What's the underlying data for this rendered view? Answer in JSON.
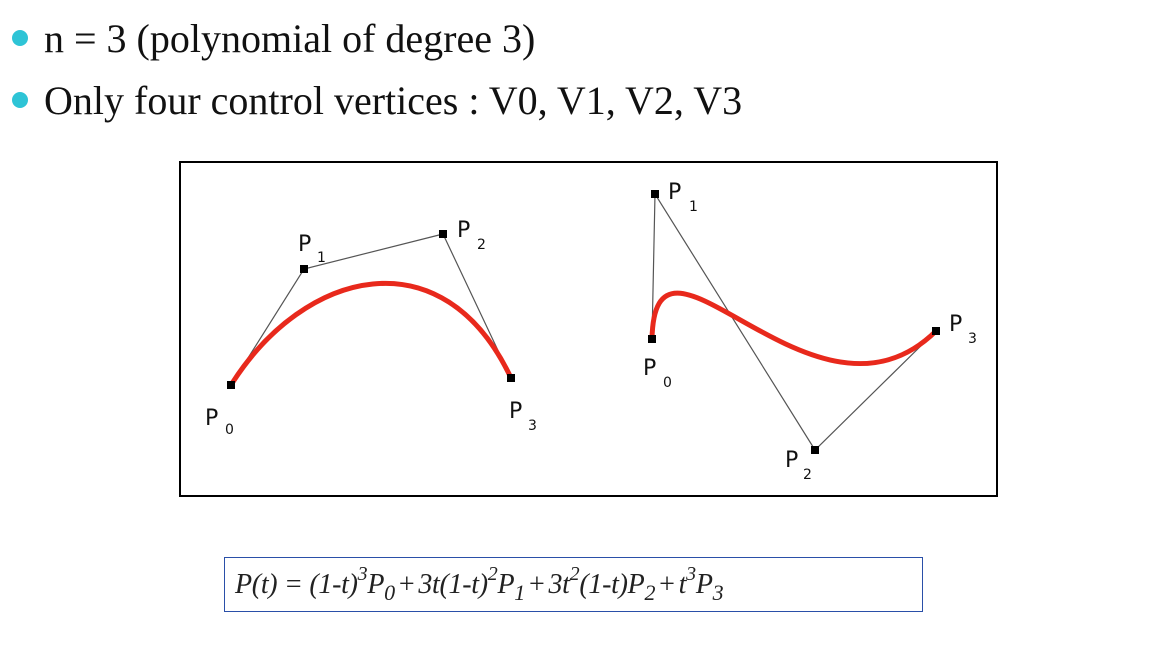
{
  "colors": {
    "bullet": "#2ec4d6",
    "curve": "#e8291c",
    "polygon": "#555555",
    "formula_border": "#2a4fa8"
  },
  "bullets": [
    {
      "text": "n = 3 (polynomial of degree 3)"
    },
    {
      "text": "Only four control vertices : V0, V1, V2, V3"
    }
  ],
  "figure": {
    "left_curve": {
      "labels": [
        {
          "main": "P",
          "sub": "0"
        },
        {
          "main": "P",
          "sub": "1"
        },
        {
          "main": "P",
          "sub": "2"
        },
        {
          "main": "P",
          "sub": "3"
        }
      ]
    },
    "right_curve": {
      "labels": [
        {
          "main": "P",
          "sub": "0"
        },
        {
          "main": "P",
          "sub": "1"
        },
        {
          "main": "P",
          "sub": "2"
        },
        {
          "main": "P",
          "sub": "3"
        }
      ]
    }
  },
  "formula": {
    "lhs": "P(t) =",
    "t1": "(1-t)",
    "t1_exp": "3",
    "t1_p": "P",
    "t1_sub": "0",
    "t2": "3t(1-t)",
    "t2_exp": "2",
    "t2_p": "P",
    "t2_sub": "1",
    "t3a": "3t",
    "t3a_exp": "2",
    "t3b": "(1-t)",
    "t3_p": "P",
    "t3_sub": "2",
    "t4": "t",
    "t4_exp": "3",
    "t4_p": "P",
    "t4_sub": "3",
    "plus": "+"
  }
}
